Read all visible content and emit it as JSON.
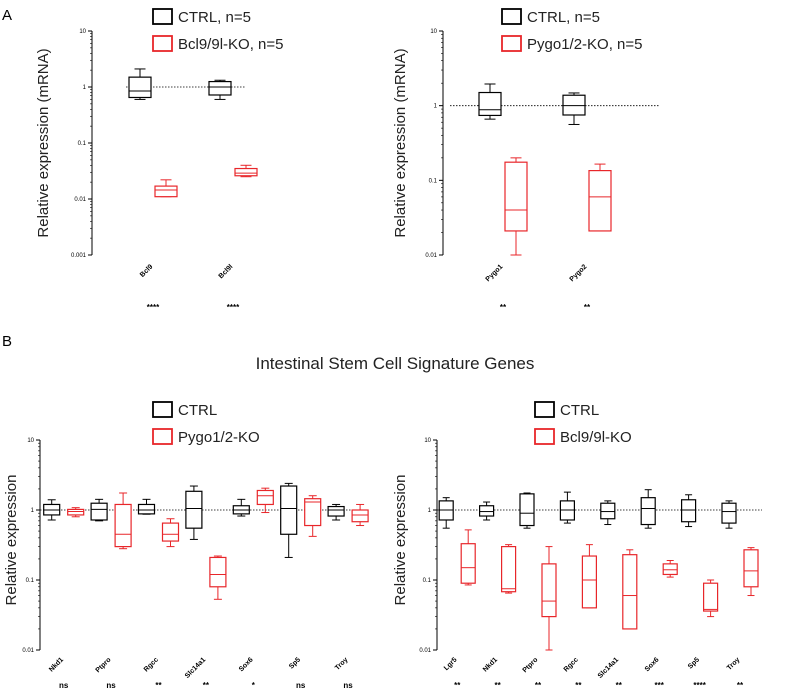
{
  "panel_labels": [
    "A",
    "B"
  ],
  "section_title": "Intestinal Stem Cell Signature Genes",
  "colors": {
    "ctrl": "#000000",
    "ko": "#e8262a",
    "reference_line": "#000000"
  },
  "chart_data": [
    {
      "type": "boxplot",
      "scale": "log",
      "ylabel": "Relative expression (mRNA)",
      "ylim": [
        0.001,
        10
      ],
      "yticks": [
        "0.001",
        "0.01",
        "0.1",
        "1",
        "10"
      ],
      "reference_line": 1,
      "legend": [
        "CTRL, n=5",
        "Bcl9/9l-KO, n=5"
      ],
      "categories": [
        "Bcl9",
        "Bcl9l"
      ],
      "significance": [
        "****",
        "****"
      ],
      "series": [
        {
          "name": "CTRL, n=5",
          "boxes": [
            {
              "min": 0.6,
              "q1": 0.65,
              "median": 0.85,
              "q3": 1.5,
              "max": 2.1
            },
            {
              "min": 0.6,
              "q1": 0.72,
              "median": 1.0,
              "q3": 1.25,
              "max": 1.32
            }
          ]
        },
        {
          "name": "Bcl9/9l-KO, n=5",
          "boxes": [
            {
              "min": 0.011,
              "q1": 0.011,
              "median": 0.0145,
              "q3": 0.017,
              "max": 0.022
            },
            {
              "min": 0.025,
              "q1": 0.026,
              "median": 0.029,
              "q3": 0.035,
              "max": 0.04
            }
          ]
        }
      ]
    },
    {
      "type": "boxplot",
      "scale": "log",
      "ylabel": "Relative expression (mRNA)",
      "ylim": [
        0.01,
        10
      ],
      "yticks": [
        "0.01",
        "0.1",
        "1",
        "10"
      ],
      "reference_line": 1,
      "legend": [
        "CTRL, n=5",
        "Pygo1/2-KO, n=5"
      ],
      "categories": [
        "Pygo1",
        "Pygo2"
      ],
      "significance": [
        "**",
        "**"
      ],
      "series": [
        {
          "name": "CTRL, n=5",
          "boxes": [
            {
              "min": 0.66,
              "q1": 0.74,
              "median": 0.88,
              "q3": 1.5,
              "max": 1.95
            },
            {
              "min": 0.56,
              "q1": 0.75,
              "median": 1.0,
              "q3": 1.38,
              "max": 1.48
            }
          ]
        },
        {
          "name": "Pygo1/2-KO, n=5",
          "boxes": [
            {
              "min": 0.01,
              "q1": 0.021,
              "median": 0.04,
              "q3": 0.175,
              "max": 0.2
            },
            {
              "min": 0.021,
              "q1": 0.021,
              "median": 0.06,
              "q3": 0.135,
              "max": 0.165
            }
          ]
        }
      ]
    },
    {
      "type": "boxplot",
      "scale": "log",
      "ylabel": "Relative expression",
      "ylim": [
        0.01,
        10
      ],
      "yticks": [
        "0.01",
        "0.1",
        "1",
        "10"
      ],
      "reference_line": 1,
      "legend": [
        "CTRL",
        "Pygo1/2-KO"
      ],
      "categories": [
        "Nkd1",
        "Ptpro",
        "Rgcc",
        "Slc14a1",
        "Sox6",
        "Sp5",
        "Troy"
      ],
      "significance": [
        "ns",
        "ns",
        "**",
        "**",
        "*",
        "ns",
        "ns"
      ],
      "series": [
        {
          "name": "CTRL",
          "boxes": [
            {
              "min": 0.72,
              "q1": 0.85,
              "median": 1.0,
              "q3": 1.2,
              "max": 1.4
            },
            {
              "min": 0.7,
              "q1": 0.72,
              "median": 1.02,
              "q3": 1.25,
              "max": 1.42
            },
            {
              "min": 0.87,
              "q1": 0.88,
              "median": 1.0,
              "q3": 1.2,
              "max": 1.42
            },
            {
              "min": 0.38,
              "q1": 0.55,
              "median": 1.05,
              "q3": 1.85,
              "max": 2.2
            },
            {
              "min": 0.82,
              "q1": 0.88,
              "median": 1.0,
              "q3": 1.15,
              "max": 1.42
            },
            {
              "min": 0.21,
              "q1": 0.45,
              "median": 1.05,
              "q3": 2.2,
              "max": 2.4
            },
            {
              "min": 0.72,
              "q1": 0.82,
              "median": 1.0,
              "q3": 1.12,
              "max": 1.2
            }
          ]
        },
        {
          "name": "Pygo1/2-KO",
          "boxes": [
            {
              "min": 0.8,
              "q1": 0.85,
              "median": 0.95,
              "q3": 1.02,
              "max": 1.08
            },
            {
              "min": 0.28,
              "q1": 0.3,
              "median": 0.45,
              "q3": 1.2,
              "max": 1.75
            },
            {
              "min": 0.3,
              "q1": 0.36,
              "median": 0.45,
              "q3": 0.65,
              "max": 0.75
            },
            {
              "min": 0.053,
              "q1": 0.08,
              "median": 0.12,
              "q3": 0.21,
              "max": 0.22
            },
            {
              "min": 0.92,
              "q1": 1.2,
              "median": 1.6,
              "q3": 1.9,
              "max": 2.05
            },
            {
              "min": 0.42,
              "q1": 0.6,
              "median": 1.3,
              "q3": 1.45,
              "max": 1.6
            },
            {
              "min": 0.6,
              "q1": 0.68,
              "median": 0.85,
              "q3": 1.0,
              "max": 1.2
            }
          ]
        }
      ]
    },
    {
      "type": "boxplot",
      "scale": "log",
      "ylabel": "Relative expression",
      "ylim": [
        0.01,
        10
      ],
      "yticks": [
        "0.01",
        "0.1",
        "1",
        "10"
      ],
      "reference_line": 1,
      "legend": [
        "CTRL",
        "Bcl9/9l-KO"
      ],
      "categories": [
        "Lgr5",
        "Nkd1",
        "Ptpro",
        "Rgcc",
        "Slc14a1",
        "Sox6",
        "Sp5",
        "Troy"
      ],
      "significance": [
        "**",
        "**",
        "**",
        "**",
        "**",
        "***",
        "****",
        "**"
      ],
      "series": [
        {
          "name": "CTRL",
          "boxes": [
            {
              "min": 0.55,
              "q1": 0.72,
              "median": 1.0,
              "q3": 1.35,
              "max": 1.5
            },
            {
              "min": 0.72,
              "q1": 0.82,
              "median": 0.95,
              "q3": 1.15,
              "max": 1.3
            },
            {
              "min": 0.55,
              "q1": 0.6,
              "median": 0.9,
              "q3": 1.7,
              "max": 1.75
            },
            {
              "min": 0.65,
              "q1": 0.72,
              "median": 1.0,
              "q3": 1.35,
              "max": 1.8
            },
            {
              "min": 0.62,
              "q1": 0.75,
              "median": 0.95,
              "q3": 1.25,
              "max": 1.35
            },
            {
              "min": 0.55,
              "q1": 0.62,
              "median": 1.05,
              "q3": 1.5,
              "max": 1.95
            },
            {
              "min": 0.58,
              "q1": 0.68,
              "median": 1.0,
              "q3": 1.4,
              "max": 1.65
            },
            {
              "min": 0.55,
              "q1": 0.65,
              "median": 0.95,
              "q3": 1.25,
              "max": 1.35
            }
          ]
        },
        {
          "name": "Bcl9/9l-KO",
          "boxes": [
            {
              "min": 0.085,
              "q1": 0.09,
              "median": 0.15,
              "q3": 0.33,
              "max": 0.52
            },
            {
              "min": 0.065,
              "q1": 0.068,
              "median": 0.075,
              "q3": 0.3,
              "max": 0.32
            },
            {
              "min": 0.01,
              "q1": 0.03,
              "median": 0.05,
              "q3": 0.17,
              "max": 0.3
            },
            {
              "min": 0.04,
              "q1": 0.04,
              "median": 0.1,
              "q3": 0.22,
              "max": 0.32
            },
            {
              "min": 0.02,
              "q1": 0.02,
              "median": 0.06,
              "q3": 0.23,
              "max": 0.27
            },
            {
              "min": 0.11,
              "q1": 0.12,
              "median": 0.14,
              "q3": 0.17,
              "max": 0.19
            },
            {
              "min": 0.03,
              "q1": 0.036,
              "median": 0.038,
              "q3": 0.09,
              "max": 0.1
            },
            {
              "min": 0.06,
              "q1": 0.08,
              "median": 0.135,
              "q3": 0.27,
              "max": 0.29
            }
          ]
        }
      ]
    }
  ]
}
